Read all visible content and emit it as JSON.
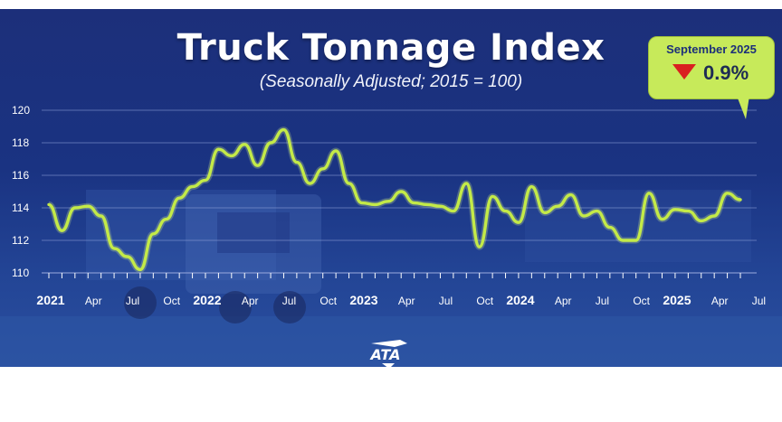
{
  "header": {
    "title": "Truck Tonnage Index",
    "subtitle": "(Seasonally Adjusted; 2015 = 100)"
  },
  "callout": {
    "period": "September 2025",
    "change": "0.9%",
    "direction": "down",
    "direction_color": "#d92020",
    "background_color": "#c7ea5a"
  },
  "logo": {
    "text": "ATA"
  },
  "colors": {
    "line": "#c3ea48",
    "background": "#1c2f7a",
    "grid": "#8fa2d8"
  },
  "chart_data": {
    "type": "line",
    "title": "Truck Tonnage Index",
    "subtitle": "(Seasonally Adjusted; 2015 = 100)",
    "ylim": [
      110,
      120
    ],
    "y_ticks": [
      110,
      112,
      114,
      116,
      118,
      120
    ],
    "grid": true,
    "x_labels": [
      {
        "month": 0,
        "label": "2021",
        "year": true
      },
      {
        "month": 3,
        "label": "Apr"
      },
      {
        "month": 6,
        "label": "Jul"
      },
      {
        "month": 9,
        "label": "Oct"
      },
      {
        "month": 12,
        "label": "2022",
        "year": true
      },
      {
        "month": 15,
        "label": "Apr"
      },
      {
        "month": 18,
        "label": "Jul"
      },
      {
        "month": 21,
        "label": "Oct"
      },
      {
        "month": 24,
        "label": "2023",
        "year": true
      },
      {
        "month": 27,
        "label": "Apr"
      },
      {
        "month": 30,
        "label": "Jul"
      },
      {
        "month": 33,
        "label": "Oct"
      },
      {
        "month": 36,
        "label": "2024",
        "year": true
      },
      {
        "month": 39,
        "label": "Apr"
      },
      {
        "month": 42,
        "label": "Jul"
      },
      {
        "month": 45,
        "label": "Oct"
      },
      {
        "month": 48,
        "label": "2025",
        "year": true
      },
      {
        "month": 51,
        "label": "Apr"
      },
      {
        "month": 54,
        "label": "Jul"
      }
    ],
    "series": [
      {
        "values": [
          114.2,
          112.6,
          114.0,
          114.1,
          113.5,
          111.5,
          111.0,
          110.2,
          112.4,
          113.3,
          114.6,
          115.3,
          115.7,
          117.6,
          117.2,
          117.9,
          116.6,
          118.0,
          118.8,
          116.8,
          115.5,
          116.4,
          117.5,
          115.5,
          114.3,
          114.2,
          114.4,
          115.0,
          114.3,
          114.2,
          114.1,
          113.8,
          115.5,
          111.6,
          114.7,
          113.8,
          113.1,
          115.3,
          113.7,
          114.1,
          114.8,
          113.5,
          113.8,
          112.8,
          112.0,
          112.0,
          114.9,
          113.3,
          113.9,
          113.8,
          113.2,
          113.5,
          114.9,
          114.5
        ]
      }
    ]
  }
}
